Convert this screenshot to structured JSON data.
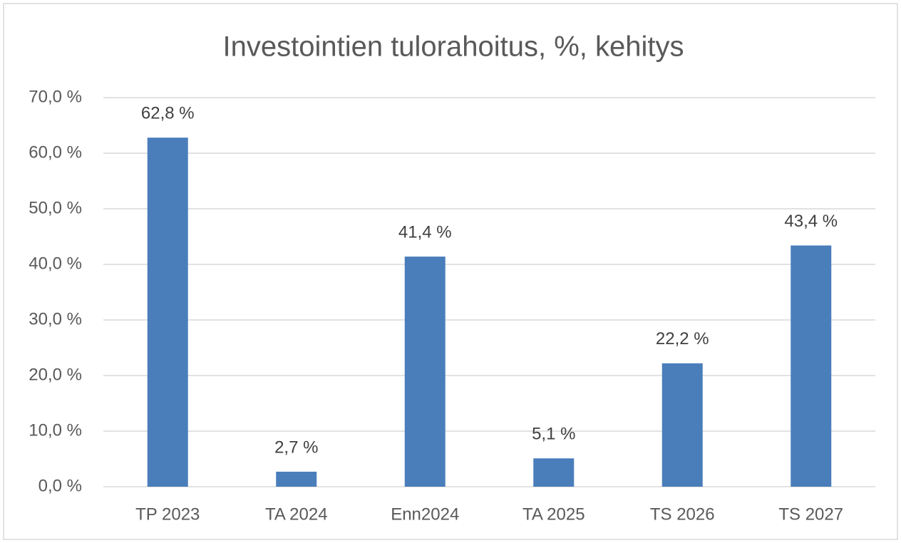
{
  "chart_data": {
    "type": "bar",
    "title": "Investointien tulorahoitus, %, kehitys",
    "categories": [
      "TP 2023",
      "TA 2024",
      "Enn2024",
      "TA 2025",
      "TS 2026",
      "TS 2027"
    ],
    "values": [
      62.8,
      2.7,
      41.4,
      5.1,
      22.2,
      43.4
    ],
    "value_labels": [
      "62,8 %",
      "2,7 %",
      "41,4 %",
      "5,1 %",
      "22,2 %",
      "43,4 %"
    ],
    "color": "#4a7ebb",
    "ylim": [
      0,
      70
    ],
    "yticks": [
      {
        "value": 0,
        "label": "0,0 %"
      },
      {
        "value": 10,
        "label": "10,0 %"
      },
      {
        "value": 20,
        "label": "20,0 %"
      },
      {
        "value": 30,
        "label": "30,0 %"
      },
      {
        "value": 40,
        "label": "40,0 %"
      },
      {
        "value": 50,
        "label": "50,0 %"
      },
      {
        "value": 60,
        "label": "60,0 %"
      },
      {
        "value": 70,
        "label": "70,0 %"
      }
    ],
    "grid": true
  }
}
